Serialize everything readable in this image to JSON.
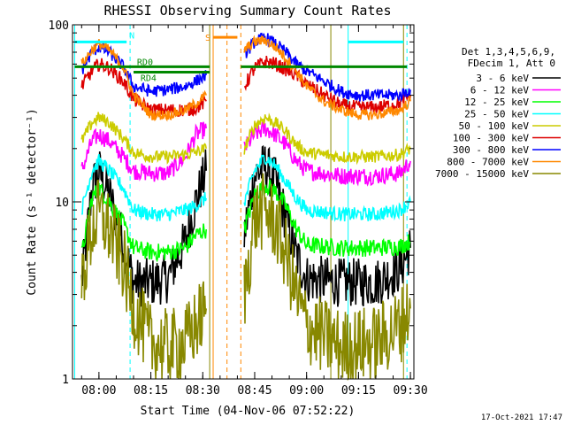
{
  "chart_data": {
    "type": "line",
    "title": "RHESSI Observing Summary Count Rates",
    "xlabel": "Start Time (04-Nov-06 07:52:22)",
    "ylabel": "Count Rate (s⁻¹ detector⁻¹)",
    "yscale": "log",
    "ylim": [
      1,
      100
    ],
    "xlim": [
      "07:52:22",
      "09:31:00"
    ],
    "x_ticks": [
      "08:00",
      "08:15",
      "08:30",
      "08:45",
      "09:00",
      "09:15",
      "09:30"
    ],
    "y_ticks": [
      "1",
      "10",
      "100"
    ],
    "legend_header": [
      "Det 1,3,4,5,6,9,",
      "FDecim 1, Att 0"
    ],
    "legend_position": "right",
    "series": [
      {
        "name": "3 - 6 keV",
        "color": "#000000",
        "points": [
          [
            "07:55",
            3.5
          ],
          [
            "07:58",
            12
          ],
          [
            "08:00",
            15
          ],
          [
            "08:03",
            11
          ],
          [
            "08:07",
            6
          ],
          [
            "08:10",
            3.5
          ],
          [
            "08:15",
            3.5
          ],
          [
            "08:20",
            3.7
          ],
          [
            "08:25",
            6
          ],
          [
            "08:28",
            10
          ],
          [
            "08:31",
            15
          ],
          [
            "08:42",
            6.5
          ],
          [
            "08:45",
            14
          ],
          [
            "08:48",
            16
          ],
          [
            "08:51",
            13
          ],
          [
            "08:54",
            8
          ],
          [
            "08:57",
            5
          ],
          [
            "09:00",
            3.7
          ],
          [
            "09:10",
            3.5
          ],
          [
            "09:20",
            3.5
          ],
          [
            "09:27",
            4.2
          ],
          [
            "09:30",
            5.5
          ]
        ]
      },
      {
        "name": "6 - 12 keV",
        "color": "#ff00ff",
        "points": [
          [
            "07:55",
            15
          ],
          [
            "07:58",
            22
          ],
          [
            "08:00",
            24
          ],
          [
            "08:03",
            22
          ],
          [
            "08:07",
            18
          ],
          [
            "08:10",
            15
          ],
          [
            "08:15",
            14.5
          ],
          [
            "08:20",
            14.5
          ],
          [
            "08:25",
            18
          ],
          [
            "08:28",
            24
          ],
          [
            "08:31",
            26
          ],
          [
            "08:42",
            20
          ],
          [
            "08:45",
            24
          ],
          [
            "08:48",
            26
          ],
          [
            "08:51",
            24
          ],
          [
            "08:54",
            21
          ],
          [
            "08:57",
            17
          ],
          [
            "09:00",
            15
          ],
          [
            "09:10",
            14
          ],
          [
            "09:20",
            14
          ],
          [
            "09:27",
            14.5
          ],
          [
            "09:30",
            17
          ]
        ]
      },
      {
        "name": "12 - 25 keV",
        "color": "#00ff00",
        "points": [
          [
            "07:55",
            5
          ],
          [
            "07:58",
            10.5
          ],
          [
            "08:00",
            12
          ],
          [
            "08:03",
            10
          ],
          [
            "08:07",
            7.5
          ],
          [
            "08:10",
            5.5
          ],
          [
            "08:15",
            5.2
          ],
          [
            "08:20",
            5.2
          ],
          [
            "08:25",
            5.5
          ],
          [
            "08:28",
            6.5
          ],
          [
            "08:31",
            7
          ],
          [
            "08:42",
            7
          ],
          [
            "08:45",
            11
          ],
          [
            "08:48",
            12.5
          ],
          [
            "08:51",
            11.5
          ],
          [
            "08:54",
            9.5
          ],
          [
            "08:57",
            7
          ],
          [
            "09:00",
            5.7
          ],
          [
            "09:10",
            5.5
          ],
          [
            "09:20",
            5.5
          ],
          [
            "09:27",
            5.6
          ],
          [
            "09:30",
            6
          ]
        ]
      },
      {
        "name": "25 - 50 keV",
        "color": "#00ffff",
        "points": [
          [
            "07:55",
            9
          ],
          [
            "07:58",
            15
          ],
          [
            "08:00",
            17
          ],
          [
            "08:03",
            15
          ],
          [
            "08:07",
            12
          ],
          [
            "08:10",
            9
          ],
          [
            "08:15",
            8.5
          ],
          [
            "08:20",
            8.5
          ],
          [
            "08:25",
            9
          ],
          [
            "08:28",
            9.5
          ],
          [
            "08:31",
            10.5
          ],
          [
            "08:42",
            10
          ],
          [
            "08:45",
            15
          ],
          [
            "08:48",
            18
          ],
          [
            "08:51",
            16
          ],
          [
            "08:54",
            13
          ],
          [
            "08:57",
            10.5
          ],
          [
            "09:00",
            9
          ],
          [
            "09:10",
            8.5
          ],
          [
            "09:20",
            8.5
          ],
          [
            "09:27",
            9
          ],
          [
            "09:30",
            10
          ]
        ]
      },
      {
        "name": "50 - 100 keV",
        "color": "#cccc00",
        "points": [
          [
            "07:55",
            22
          ],
          [
            "07:58",
            28
          ],
          [
            "08:00",
            30
          ],
          [
            "08:03",
            28
          ],
          [
            "08:07",
            23
          ],
          [
            "08:10",
            19
          ],
          [
            "08:15",
            18
          ],
          [
            "08:20",
            18
          ],
          [
            "08:25",
            18.5
          ],
          [
            "08:28",
            19
          ],
          [
            "08:31",
            20
          ],
          [
            "08:42",
            20
          ],
          [
            "08:45",
            27
          ],
          [
            "08:48",
            30
          ],
          [
            "08:51",
            28
          ],
          [
            "08:54",
            25
          ],
          [
            "08:57",
            21
          ],
          [
            "09:00",
            19
          ],
          [
            "09:10",
            18
          ],
          [
            "09:20",
            18
          ],
          [
            "09:27",
            18.5
          ],
          [
            "09:30",
            20
          ]
        ]
      },
      {
        "name": "100 - 300 keV",
        "color": "#dd0000",
        "points": [
          [
            "07:55",
            45
          ],
          [
            "07:58",
            55
          ],
          [
            "08:00",
            60
          ],
          [
            "08:03",
            57
          ],
          [
            "08:07",
            48
          ],
          [
            "08:10",
            38
          ],
          [
            "08:15",
            33
          ],
          [
            "08:20",
            33
          ],
          [
            "08:25",
            33
          ],
          [
            "08:28",
            34
          ],
          [
            "08:31",
            37
          ],
          [
            "08:42",
            45
          ],
          [
            "08:45",
            57
          ],
          [
            "08:48",
            62
          ],
          [
            "08:51",
            60
          ],
          [
            "08:54",
            56
          ],
          [
            "08:57",
            52
          ],
          [
            "09:00",
            46
          ],
          [
            "09:05",
            40
          ],
          [
            "09:10",
            35
          ],
          [
            "09:15",
            34
          ],
          [
            "09:20",
            34
          ],
          [
            "09:27",
            36
          ],
          [
            "09:30",
            40
          ]
        ]
      },
      {
        "name": "300 - 800 keV",
        "color": "#0000ff",
        "points": [
          [
            "07:55",
            55
          ],
          [
            "07:58",
            70
          ],
          [
            "08:00",
            75
          ],
          [
            "08:03",
            70
          ],
          [
            "08:07",
            58
          ],
          [
            "08:10",
            45
          ],
          [
            "08:15",
            42
          ],
          [
            "08:20",
            43
          ],
          [
            "08:25",
            45
          ],
          [
            "08:28",
            48
          ],
          [
            "08:31",
            52
          ],
          [
            "08:42",
            68
          ],
          [
            "08:45",
            80
          ],
          [
            "08:48",
            85
          ],
          [
            "08:51",
            78
          ],
          [
            "08:54",
            70
          ],
          [
            "08:57",
            60
          ],
          [
            "09:00",
            55
          ],
          [
            "09:05",
            48
          ],
          [
            "09:10",
            42
          ],
          [
            "09:15",
            40
          ],
          [
            "09:20",
            40
          ],
          [
            "09:27",
            40
          ],
          [
            "09:30",
            43
          ]
        ]
      },
      {
        "name": "800 - 7000 keV",
        "color": "#ff8800",
        "points": [
          [
            "07:55",
            60
          ],
          [
            "07:58",
            72
          ],
          [
            "08:00",
            78
          ],
          [
            "08:03",
            72
          ],
          [
            "08:07",
            58
          ],
          [
            "08:10",
            40
          ],
          [
            "08:15",
            31
          ],
          [
            "08:20",
            31
          ],
          [
            "08:25",
            33
          ],
          [
            "08:28",
            36
          ],
          [
            "08:31",
            40
          ],
          [
            "08:42",
            72
          ],
          [
            "08:45",
            80
          ],
          [
            "08:48",
            82
          ],
          [
            "08:51",
            75
          ],
          [
            "08:54",
            65
          ],
          [
            "08:57",
            55
          ],
          [
            "09:00",
            45
          ],
          [
            "09:05",
            37
          ],
          [
            "09:10",
            33
          ],
          [
            "09:15",
            31
          ],
          [
            "09:20",
            31
          ],
          [
            "09:27",
            33
          ],
          [
            "09:30",
            37
          ]
        ]
      },
      {
        "name": "7000 - 15000 keV",
        "color": "#888800",
        "points": [
          [
            "07:55",
            3.5
          ],
          [
            "07:58",
            7
          ],
          [
            "08:00",
            8.5
          ],
          [
            "08:03",
            7
          ],
          [
            "08:07",
            4.5
          ],
          [
            "08:10",
            2.5
          ],
          [
            "08:15",
            1.6
          ],
          [
            "08:20",
            1.5
          ],
          [
            "08:25",
            1.6
          ],
          [
            "08:28",
            2
          ],
          [
            "08:31",
            2.5
          ],
          [
            "08:42",
            3
          ],
          [
            "08:45",
            8
          ],
          [
            "08:48",
            9
          ],
          [
            "08:51",
            7.5
          ],
          [
            "08:54",
            5
          ],
          [
            "08:57",
            3
          ],
          [
            "09:00",
            2
          ],
          [
            "09:10",
            1.5
          ],
          [
            "09:20",
            1.6
          ],
          [
            "09:27",
            2
          ],
          [
            "09:30",
            2.5
          ]
        ]
      }
    ],
    "annotations": [
      {
        "text": "N",
        "color": "#00ffff",
        "y": 80
      },
      {
        "text": "S",
        "color": "#ff8800",
        "y": 85
      },
      {
        "text": "RD0",
        "color": "#008800",
        "y": 58
      },
      {
        "text": "RD4",
        "color": "#008800",
        "y": 54
      }
    ],
    "timestamp": "17-Oct-2021 17:47"
  }
}
